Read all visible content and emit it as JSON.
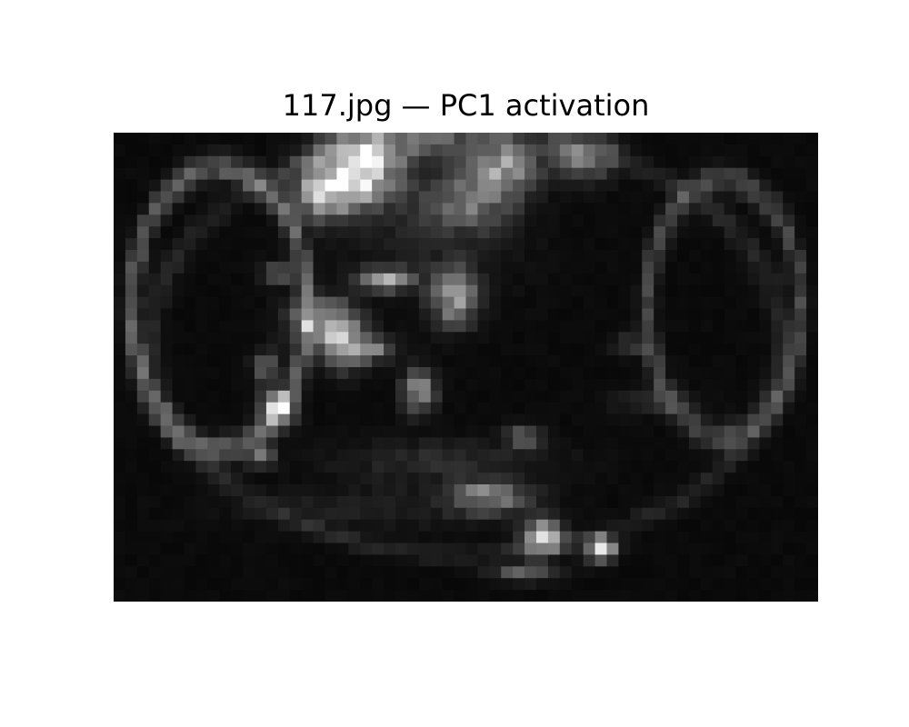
{
  "chart_data": {
    "type": "heatmap",
    "title": "117.jpg — PC1 activation",
    "colormap": "gray",
    "axes_visible": false,
    "grid": false,
    "legend": "none",
    "rows": 40,
    "cols": 60,
    "value_range": [
      0,
      1
    ],
    "background_level": 0.04,
    "regions": [
      {
        "type": "blob",
        "cx": 21,
        "cy": 3,
        "rx": 3.5,
        "ry": 3,
        "value": 0.85
      },
      {
        "type": "blob",
        "cx": 18,
        "cy": 5,
        "rx": 3,
        "ry": 2.5,
        "value": 0.6
      },
      {
        "type": "blob",
        "cx": 33,
        "cy": 3,
        "rx": 3,
        "ry": 2.5,
        "value": 0.55
      },
      {
        "type": "blob",
        "cx": 40,
        "cy": 2,
        "rx": 3,
        "ry": 2,
        "value": 0.45
      },
      {
        "type": "blob",
        "cx": 30,
        "cy": 6,
        "rx": 4,
        "ry": 2.5,
        "value": 0.35
      },
      {
        "type": "blob",
        "cx": 26,
        "cy": 1,
        "rx": 6,
        "ry": 1.5,
        "value": 0.3
      },
      {
        "type": "blob",
        "cx": 19.5,
        "cy": 17.5,
        "rx": 2,
        "ry": 2.5,
        "value": 0.7
      },
      {
        "type": "blob",
        "cx": 23,
        "cy": 12.5,
        "rx": 2.5,
        "ry": 1,
        "value": 0.55
      },
      {
        "type": "blob",
        "cx": 29,
        "cy": 14,
        "rx": 2,
        "ry": 2.5,
        "value": 0.55
      },
      {
        "type": "blob",
        "cx": 17,
        "cy": 16,
        "rx": 2.5,
        "ry": 2,
        "value": 0.4
      },
      {
        "type": "blob",
        "cx": 22,
        "cy": 18.5,
        "rx": 2,
        "ry": 1,
        "value": 0.4
      },
      {
        "type": "blob",
        "cx": 14,
        "cy": 23.5,
        "rx": 1.5,
        "ry": 1.5,
        "value": 0.6
      },
      {
        "type": "blob",
        "cx": 26,
        "cy": 22,
        "rx": 1.5,
        "ry": 2,
        "value": 0.45
      },
      {
        "type": "blob",
        "cx": 13,
        "cy": 20,
        "rx": 1.2,
        "ry": 1.5,
        "value": 0.3
      },
      {
        "type": "blob",
        "cx": 14,
        "cy": 12,
        "rx": 1.5,
        "ry": 1,
        "value": 0.3
      },
      {
        "type": "blob",
        "cx": 12.5,
        "cy": 27.5,
        "rx": 1.2,
        "ry": 1,
        "value": 0.4
      },
      {
        "type": "blob",
        "cx": 44,
        "cy": 18,
        "rx": 1.5,
        "ry": 1,
        "value": 0.2
      },
      {
        "type": "blob",
        "cx": 35,
        "cy": 26,
        "rx": 1.5,
        "ry": 1,
        "value": 0.35
      },
      {
        "type": "blob",
        "cx": 32,
        "cy": 31,
        "rx": 3.5,
        "ry": 1.5,
        "value": 0.45
      },
      {
        "type": "blob",
        "cx": 36.5,
        "cy": 34.5,
        "rx": 1.8,
        "ry": 1.5,
        "value": 0.7
      },
      {
        "type": "blob",
        "cx": 41.5,
        "cy": 35.5,
        "rx": 1.3,
        "ry": 1,
        "value": 0.95
      },
      {
        "type": "blob",
        "cx": 35,
        "cy": 37.5,
        "rx": 3,
        "ry": 0.8,
        "value": 0.3
      },
      {
        "type": "blob",
        "cx": 46,
        "cy": 23,
        "rx": 4,
        "ry": 1.2,
        "value": 0.12
      },
      {
        "type": "blob",
        "cx": 28,
        "cy": 28,
        "rx": 10,
        "ry": 2,
        "value": 0.12
      },
      {
        "type": "blob",
        "cx": 22,
        "cy": 32,
        "rx": 12,
        "ry": 2,
        "value": 0.08
      },
      {
        "type": "blob",
        "cx": 27,
        "cy": 9,
        "rx": 8,
        "ry": 6,
        "value": 0.08
      },
      {
        "type": "ring",
        "cx": 9,
        "cy": 15,
        "rx": 7.5,
        "ry": 12,
        "width": 0.7,
        "value": 0.3
      },
      {
        "type": "ring",
        "cx": 52,
        "cy": 15,
        "rx": 6.5,
        "ry": 11,
        "width": 0.7,
        "value": 0.22
      },
      {
        "type": "ring",
        "cx": 30,
        "cy": 18,
        "rx": 27,
        "ry": 18,
        "width": 0.5,
        "value": 0.1
      }
    ]
  }
}
